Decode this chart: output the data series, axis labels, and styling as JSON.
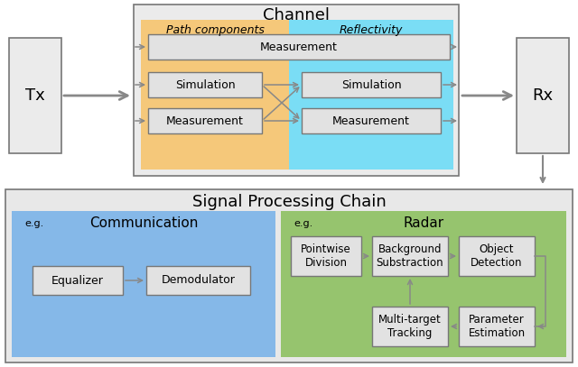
{
  "title_channel": "Channel",
  "title_signal": "Signal Processing Chain",
  "label_tx": "Tx",
  "label_rx": "Rx",
  "label_path": "Path components",
  "label_reflectivity": "Reflectivity",
  "label_comm": "Communication",
  "label_radar": "Radar",
  "label_eg": "e.g.",
  "box_measurement_top": "Measurement",
  "box_sim_left": "Simulation",
  "box_meas_left": "Measurement",
  "box_sim_right": "Simulation",
  "box_meas_right": "Measurement",
  "box_equalizer": "Equalizer",
  "box_demodulator": "Demodulator",
  "box_pointwise": "Pointwise\nDivision",
  "box_background": "Background\nSubstraction",
  "box_object": "Object\nDetection",
  "box_multitarget": "Multi-target\nTracking",
  "box_parameter": "Parameter\nEstimation",
  "color_orange": "#F5C87A",
  "color_cyan": "#7ADDF5",
  "color_blue": "#85B8E8",
  "color_green": "#96C46E",
  "color_channel_bg": "#EBEBEB",
  "color_signal_bg": "#E8E8E8",
  "color_box": "#E2E2E2",
  "color_arrow": "#888888",
  "fig_bg": "#FFFFFF"
}
